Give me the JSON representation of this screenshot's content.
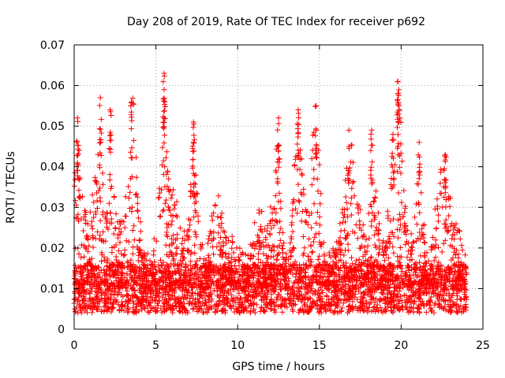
{
  "chart_data": {
    "type": "scatter",
    "title": "Day 208 of 2019, Rate Of TEC Index for receiver p692",
    "xlabel": "GPS time / hours",
    "ylabel": "ROTI / TECUs",
    "xlim": [
      0,
      25
    ],
    "ylim": [
      0,
      0.07
    ],
    "xticks": [
      "0",
      "5",
      "10",
      "15",
      "20",
      "25"
    ],
    "yticks": [
      "0",
      "0.01",
      "0.02",
      "0.03",
      "0.04",
      "0.05",
      "0.06",
      "0.07"
    ],
    "grid": true,
    "marker": "plus",
    "color": "#ff0000",
    "series": [
      {
        "name": "ROTI",
        "x_range": [
          0,
          24
        ],
        "typical_range": [
          0.004,
          0.02
        ],
        "peaks": [
          {
            "x": 0.2,
            "y": 0.052
          },
          {
            "x": 0.3,
            "y": 0.044
          },
          {
            "x": 1.6,
            "y": 0.057
          },
          {
            "x": 2.2,
            "y": 0.054
          },
          {
            "x": 3.5,
            "y": 0.056
          },
          {
            "x": 5.5,
            "y": 0.063
          },
          {
            "x": 5.5,
            "y": 0.059
          },
          {
            "x": 7.3,
            "y": 0.051
          },
          {
            "x": 7.3,
            "y": 0.046
          },
          {
            "x": 12.5,
            "y": 0.052
          },
          {
            "x": 13.7,
            "y": 0.054
          },
          {
            "x": 14.8,
            "y": 0.055
          },
          {
            "x": 16.8,
            "y": 0.049
          },
          {
            "x": 18.2,
            "y": 0.049
          },
          {
            "x": 19.5,
            "y": 0.048
          },
          {
            "x": 19.8,
            "y": 0.061
          },
          {
            "x": 19.8,
            "y": 0.058
          },
          {
            "x": 21.1,
            "y": 0.046
          },
          {
            "x": 22.7,
            "y": 0.043
          }
        ]
      }
    ]
  }
}
